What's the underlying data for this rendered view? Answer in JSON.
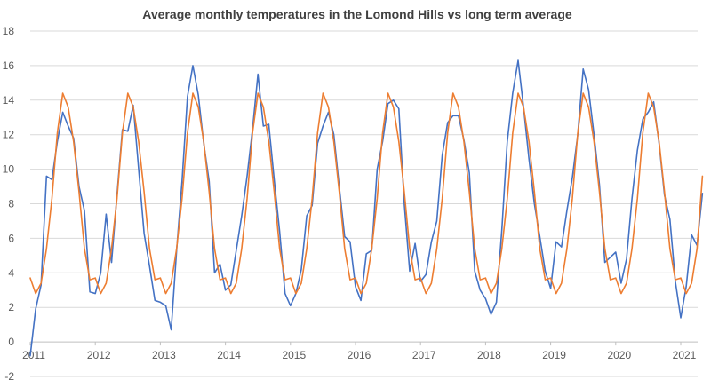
{
  "chart_data": {
    "type": "line",
    "title": "Average monthly temperatures in the Lomond Hills vs long term average",
    "xlabel": "",
    "ylabel": "",
    "ylim": [
      -2,
      18
    ],
    "yticks": [
      -2,
      0,
      2,
      4,
      6,
      8,
      10,
      12,
      14,
      16,
      18
    ],
    "x_start": "2011-01",
    "x_tick_labels": [
      "2011",
      "2012",
      "2013",
      "2014",
      "2015",
      "2016",
      "2017",
      "2018",
      "2019",
      "2020",
      "2021"
    ],
    "grid": true,
    "legend": "none",
    "series": [
      {
        "color": "#4472c4",
        "values": [
          -0.8,
          1.9,
          3.3,
          9.6,
          9.4,
          11.6,
          13.3,
          12.5,
          11.8,
          9.0,
          7.6,
          2.9,
          2.8,
          4.0,
          7.4,
          4.6,
          8.5,
          12.3,
          12.2,
          13.7,
          10.0,
          6.3,
          4.4,
          2.4,
          2.3,
          2.1,
          0.7,
          5.3,
          9.3,
          14.2,
          16.0,
          14.3,
          11.5,
          9.3,
          4.0,
          4.5,
          3.0,
          3.3,
          5.3,
          7.3,
          9.6,
          12.3,
          15.5,
          12.5,
          12.6,
          9.4,
          6.4,
          2.8,
          2.1,
          2.8,
          4.2,
          7.3,
          7.9,
          11.5,
          12.5,
          13.3,
          12.0,
          9.0,
          6.1,
          5.8,
          3.2,
          2.4,
          5.1,
          5.3,
          10.0,
          11.6,
          13.8,
          14.0,
          13.5,
          8.0,
          4.1,
          5.7,
          3.5,
          3.9,
          5.8,
          7.0,
          10.8,
          12.7,
          13.1,
          13.1,
          11.7,
          9.8,
          4.1,
          3.0,
          2.5,
          1.6,
          2.3,
          6.5,
          11.6,
          14.4,
          16.3,
          13.6,
          10.6,
          8.0,
          6.1,
          4.1,
          3.1,
          5.8,
          5.5,
          7.6,
          9.5,
          12.0,
          15.8,
          14.6,
          12.0,
          9.1,
          4.6,
          4.9,
          5.2,
          3.4,
          4.8,
          8.3,
          11.1,
          12.9,
          13.3,
          13.9,
          11.5,
          8.5,
          7.1,
          3.5,
          1.4,
          3.2,
          6.2,
          5.6,
          8.6
        ]
      },
      {
        "color": "#ed7d31",
        "values": [
          3.7,
          2.8,
          3.4,
          5.4,
          8.3,
          12.1,
          14.4,
          13.6,
          11.6,
          8.7,
          5.4,
          3.6,
          3.7,
          2.8,
          3.4,
          5.4,
          8.3,
          12.1,
          14.4,
          13.6,
          11.6,
          8.7,
          5.4,
          3.6,
          3.7,
          2.8,
          3.4,
          5.4,
          8.3,
          12.1,
          14.4,
          13.6,
          11.6,
          8.7,
          5.4,
          3.6,
          3.7,
          2.8,
          3.4,
          5.4,
          8.3,
          12.1,
          14.4,
          13.6,
          11.6,
          8.7,
          5.4,
          3.6,
          3.7,
          2.8,
          3.4,
          5.4,
          8.3,
          12.1,
          14.4,
          13.6,
          11.6,
          8.7,
          5.4,
          3.6,
          3.7,
          2.8,
          3.4,
          5.4,
          8.3,
          12.1,
          14.4,
          13.6,
          11.6,
          8.7,
          5.4,
          3.6,
          3.7,
          2.8,
          3.4,
          5.4,
          8.3,
          12.1,
          14.4,
          13.6,
          11.6,
          8.7,
          5.4,
          3.6,
          3.7,
          2.8,
          3.4,
          5.4,
          8.3,
          12.1,
          14.4,
          13.6,
          11.6,
          8.7,
          5.4,
          3.6,
          3.7,
          2.8,
          3.4,
          5.4,
          8.3,
          12.1,
          14.4,
          13.6,
          11.6,
          8.7,
          5.4,
          3.6,
          3.7,
          2.8,
          3.4,
          5.4,
          8.3,
          12.1,
          14.4,
          13.6,
          11.6,
          8.7,
          5.4,
          3.6,
          3.7,
          2.8,
          3.4,
          5.4,
          9.6
        ]
      }
    ]
  }
}
